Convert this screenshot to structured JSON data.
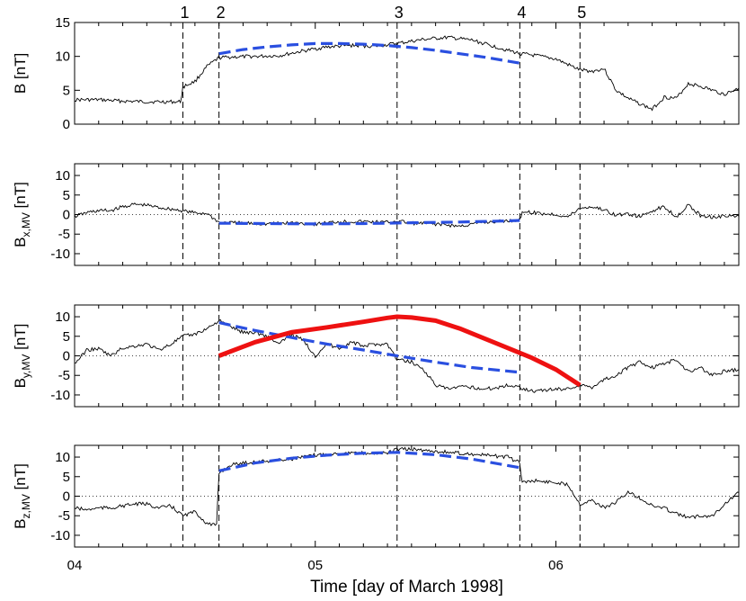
{
  "chart_data": {
    "type": "line",
    "xlabel": "Time [day of March  1998]",
    "x_ticks": [
      {
        "value": 4,
        "label": "04"
      },
      {
        "value": 5,
        "label": "05"
      },
      {
        "value": 6,
        "label": "06"
      }
    ],
    "xlim": [
      4.0,
      6.76
    ],
    "events": [
      {
        "label": "1",
        "x": 4.45
      },
      {
        "label": "2",
        "x": 4.6
      },
      {
        "label": "3",
        "x": 5.34
      },
      {
        "label": "4",
        "x": 5.85
      },
      {
        "label": "5",
        "x": 6.1
      }
    ],
    "panels": [
      {
        "ylabel_main": "B",
        "ylabel_sub": "",
        "ylabel_unit": "[nT]",
        "ylim": [
          0,
          15
        ],
        "yticks": [
          0,
          5,
          10,
          15
        ],
        "zero_line": false,
        "observed": {
          "x": [
            4.0,
            4.1,
            4.2,
            4.3,
            4.44,
            4.45,
            4.5,
            4.55,
            4.6,
            4.65,
            4.75,
            4.85,
            4.95,
            5.05,
            5.15,
            5.25,
            5.34,
            5.45,
            5.55,
            5.65,
            5.75,
            5.85,
            5.9,
            6.0,
            6.1,
            6.15,
            6.2,
            6.25,
            6.3,
            6.35,
            6.4,
            6.45,
            6.5,
            6.55,
            6.6,
            6.65,
            6.7,
            6.76
          ],
          "y": [
            3.6,
            3.6,
            3.4,
            3.3,
            3.3,
            5.5,
            6.3,
            8.5,
            9.8,
            9.9,
            10.0,
            10.1,
            10.8,
            11.4,
            11.6,
            11.5,
            11.9,
            12.5,
            12.8,
            12.4,
            11.4,
            10.4,
            10.2,
            9.6,
            8.0,
            7.8,
            8.2,
            5.0,
            3.8,
            3.0,
            2.2,
            4.0,
            3.8,
            6.0,
            5.6,
            5.0,
            4.4,
            5.3
          ]
        },
        "model_blue": {
          "x": [
            4.6,
            4.7,
            4.8,
            4.9,
            5.0,
            5.1,
            5.2,
            5.3,
            5.4,
            5.5,
            5.6,
            5.7,
            5.8,
            5.85
          ],
          "y": [
            10.4,
            11.0,
            11.4,
            11.7,
            11.9,
            11.9,
            11.8,
            11.6,
            11.3,
            10.9,
            10.4,
            9.9,
            9.3,
            9.0
          ]
        }
      },
      {
        "ylabel_main": "B",
        "ylabel_sub": "x,MV",
        "ylabel_unit": "[nT]",
        "ylim": [
          -13,
          13
        ],
        "yticks": [
          -10,
          -5,
          0,
          5,
          10
        ],
        "zero_line": true,
        "observed": {
          "x": [
            4.0,
            4.05,
            4.1,
            4.15,
            4.2,
            4.25,
            4.3,
            4.35,
            4.4,
            4.45,
            4.5,
            4.55,
            4.6,
            4.7,
            4.8,
            4.9,
            5.0,
            5.1,
            5.2,
            5.3,
            5.34,
            5.4,
            5.5,
            5.6,
            5.7,
            5.8,
            5.85,
            5.86,
            5.95,
            6.0,
            6.05,
            6.1,
            6.15,
            6.2,
            6.25,
            6.3,
            6.35,
            6.4,
            6.45,
            6.5,
            6.55,
            6.6,
            6.65,
            6.7,
            6.76
          ],
          "y": [
            -0.5,
            0.5,
            1.0,
            1.0,
            2.0,
            2.6,
            2.4,
            1.8,
            1.4,
            1.0,
            0.4,
            0.3,
            -2.0,
            -2.2,
            -2.4,
            -2.1,
            -2.4,
            -1.8,
            -1.8,
            -2.0,
            -1.6,
            -2.2,
            -2.4,
            -3.0,
            -2.0,
            -1.6,
            -1.4,
            0.8,
            0.2,
            0.0,
            -0.6,
            1.6,
            2.0,
            1.2,
            -0.2,
            0.2,
            -0.6,
            1.0,
            2.0,
            -0.5,
            2.4,
            -0.2,
            -0.6,
            -0.4,
            -0.4
          ]
        },
        "model_blue": {
          "x": [
            4.6,
            4.8,
            5.0,
            5.2,
            5.4,
            5.6,
            5.8,
            5.85
          ],
          "y": [
            -2.2,
            -2.3,
            -2.4,
            -2.3,
            -2.1,
            -1.9,
            -1.6,
            -1.5
          ]
        }
      },
      {
        "ylabel_main": "B",
        "ylabel_sub": "y,MV",
        "ylabel_unit": "[nT]",
        "ylim": [
          -13,
          13
        ],
        "yticks": [
          -10,
          -5,
          0,
          5,
          10
        ],
        "zero_line": true,
        "observed": {
          "x": [
            4.0,
            4.03,
            4.05,
            4.1,
            4.15,
            4.2,
            4.25,
            4.3,
            4.35,
            4.4,
            4.45,
            4.5,
            4.55,
            4.6,
            4.65,
            4.7,
            4.75,
            4.8,
            4.85,
            4.9,
            4.95,
            5.0,
            5.05,
            5.1,
            5.15,
            5.2,
            5.25,
            5.3,
            5.34,
            5.4,
            5.45,
            5.5,
            5.55,
            5.6,
            5.65,
            5.7,
            5.75,
            5.8,
            5.85,
            5.9,
            5.95,
            6.0,
            6.05,
            6.1,
            6.15,
            6.2,
            6.25,
            6.3,
            6.35,
            6.4,
            6.45,
            6.5,
            6.55,
            6.6,
            6.65,
            6.7,
            6.76
          ],
          "y": [
            -2.0,
            0.0,
            1.5,
            1.8,
            0.0,
            2.0,
            2.5,
            3.0,
            1.5,
            3.0,
            5.0,
            5.5,
            7.0,
            9.0,
            7.5,
            6.0,
            6.0,
            5.0,
            3.0,
            5.5,
            4.0,
            0.0,
            3.0,
            2.0,
            3.5,
            2.5,
            3.0,
            3.0,
            -1.0,
            -1.5,
            -3.5,
            -7.5,
            -8.5,
            -8.0,
            -8.0,
            -8.5,
            -8.2,
            -7.5,
            -8.0,
            -9.0,
            -8.8,
            -8.5,
            -8.4,
            -7.5,
            -8.0,
            -6.0,
            -5.0,
            -3.0,
            -1.5,
            -3.0,
            -2.0,
            -1.0,
            -4.0,
            -3.0,
            -5.0,
            -4.0,
            -3.5
          ]
        },
        "model_blue": {
          "x": [
            4.6,
            4.75,
            4.9,
            5.05,
            5.2,
            5.34,
            5.5,
            5.65,
            5.85
          ],
          "y": [
            8.5,
            6.5,
            4.7,
            3.0,
            1.5,
            0.0,
            -1.6,
            -3.0,
            -4.2
          ]
        },
        "model_red": {
          "x": [
            4.6,
            4.75,
            4.9,
            5.05,
            5.2,
            5.3,
            5.34,
            5.4,
            5.5,
            5.6,
            5.7,
            5.8,
            5.9,
            6.0,
            6.1
          ],
          "y": [
            0.0,
            3.5,
            6.0,
            7.3,
            8.7,
            9.7,
            10.0,
            9.8,
            9.0,
            7.0,
            4.5,
            2.0,
            -0.5,
            -3.5,
            -7.5
          ]
        }
      },
      {
        "ylabel_main": "B",
        "ylabel_sub": "z,MV",
        "ylabel_unit": "[nT]",
        "ylim": [
          -13,
          13
        ],
        "yticks": [
          -10,
          -5,
          0,
          5,
          10
        ],
        "zero_line": true,
        "observed": {
          "x": [
            4.0,
            4.05,
            4.1,
            4.15,
            4.2,
            4.25,
            4.3,
            4.35,
            4.4,
            4.45,
            4.5,
            4.55,
            4.59,
            4.6,
            4.65,
            4.7,
            4.8,
            4.9,
            5.0,
            5.1,
            5.2,
            5.3,
            5.34,
            5.4,
            5.5,
            5.6,
            5.7,
            5.8,
            5.85,
            5.86,
            5.9,
            6.0,
            6.05,
            6.1,
            6.15,
            6.2,
            6.25,
            6.3,
            6.35,
            6.4,
            6.45,
            6.5,
            6.55,
            6.6,
            6.65,
            6.7,
            6.76
          ],
          "y": [
            -3.0,
            -3.5,
            -3.0,
            -3.0,
            -2.5,
            -2.0,
            -2.0,
            -3.0,
            -2.5,
            -5.0,
            -4.0,
            -7.0,
            -7.5,
            6.0,
            8.0,
            8.5,
            9.0,
            9.5,
            10.5,
            11.0,
            11.0,
            11.0,
            12.0,
            12.0,
            11.5,
            11.0,
            10.5,
            10.0,
            8.5,
            3.5,
            4.0,
            3.5,
            3.0,
            -2.0,
            -1.0,
            -3.0,
            -1.5,
            1.0,
            -0.5,
            -2.5,
            -3.0,
            -4.5,
            -5.5,
            -5.0,
            -5.0,
            -2.0,
            1.0
          ]
        },
        "model_blue": {
          "x": [
            4.6,
            4.75,
            4.9,
            5.05,
            5.2,
            5.34,
            5.5,
            5.65,
            5.85
          ],
          "y": [
            6.5,
            8.5,
            9.7,
            10.5,
            11.0,
            11.2,
            10.6,
            9.5,
            7.3
          ]
        }
      }
    ]
  }
}
